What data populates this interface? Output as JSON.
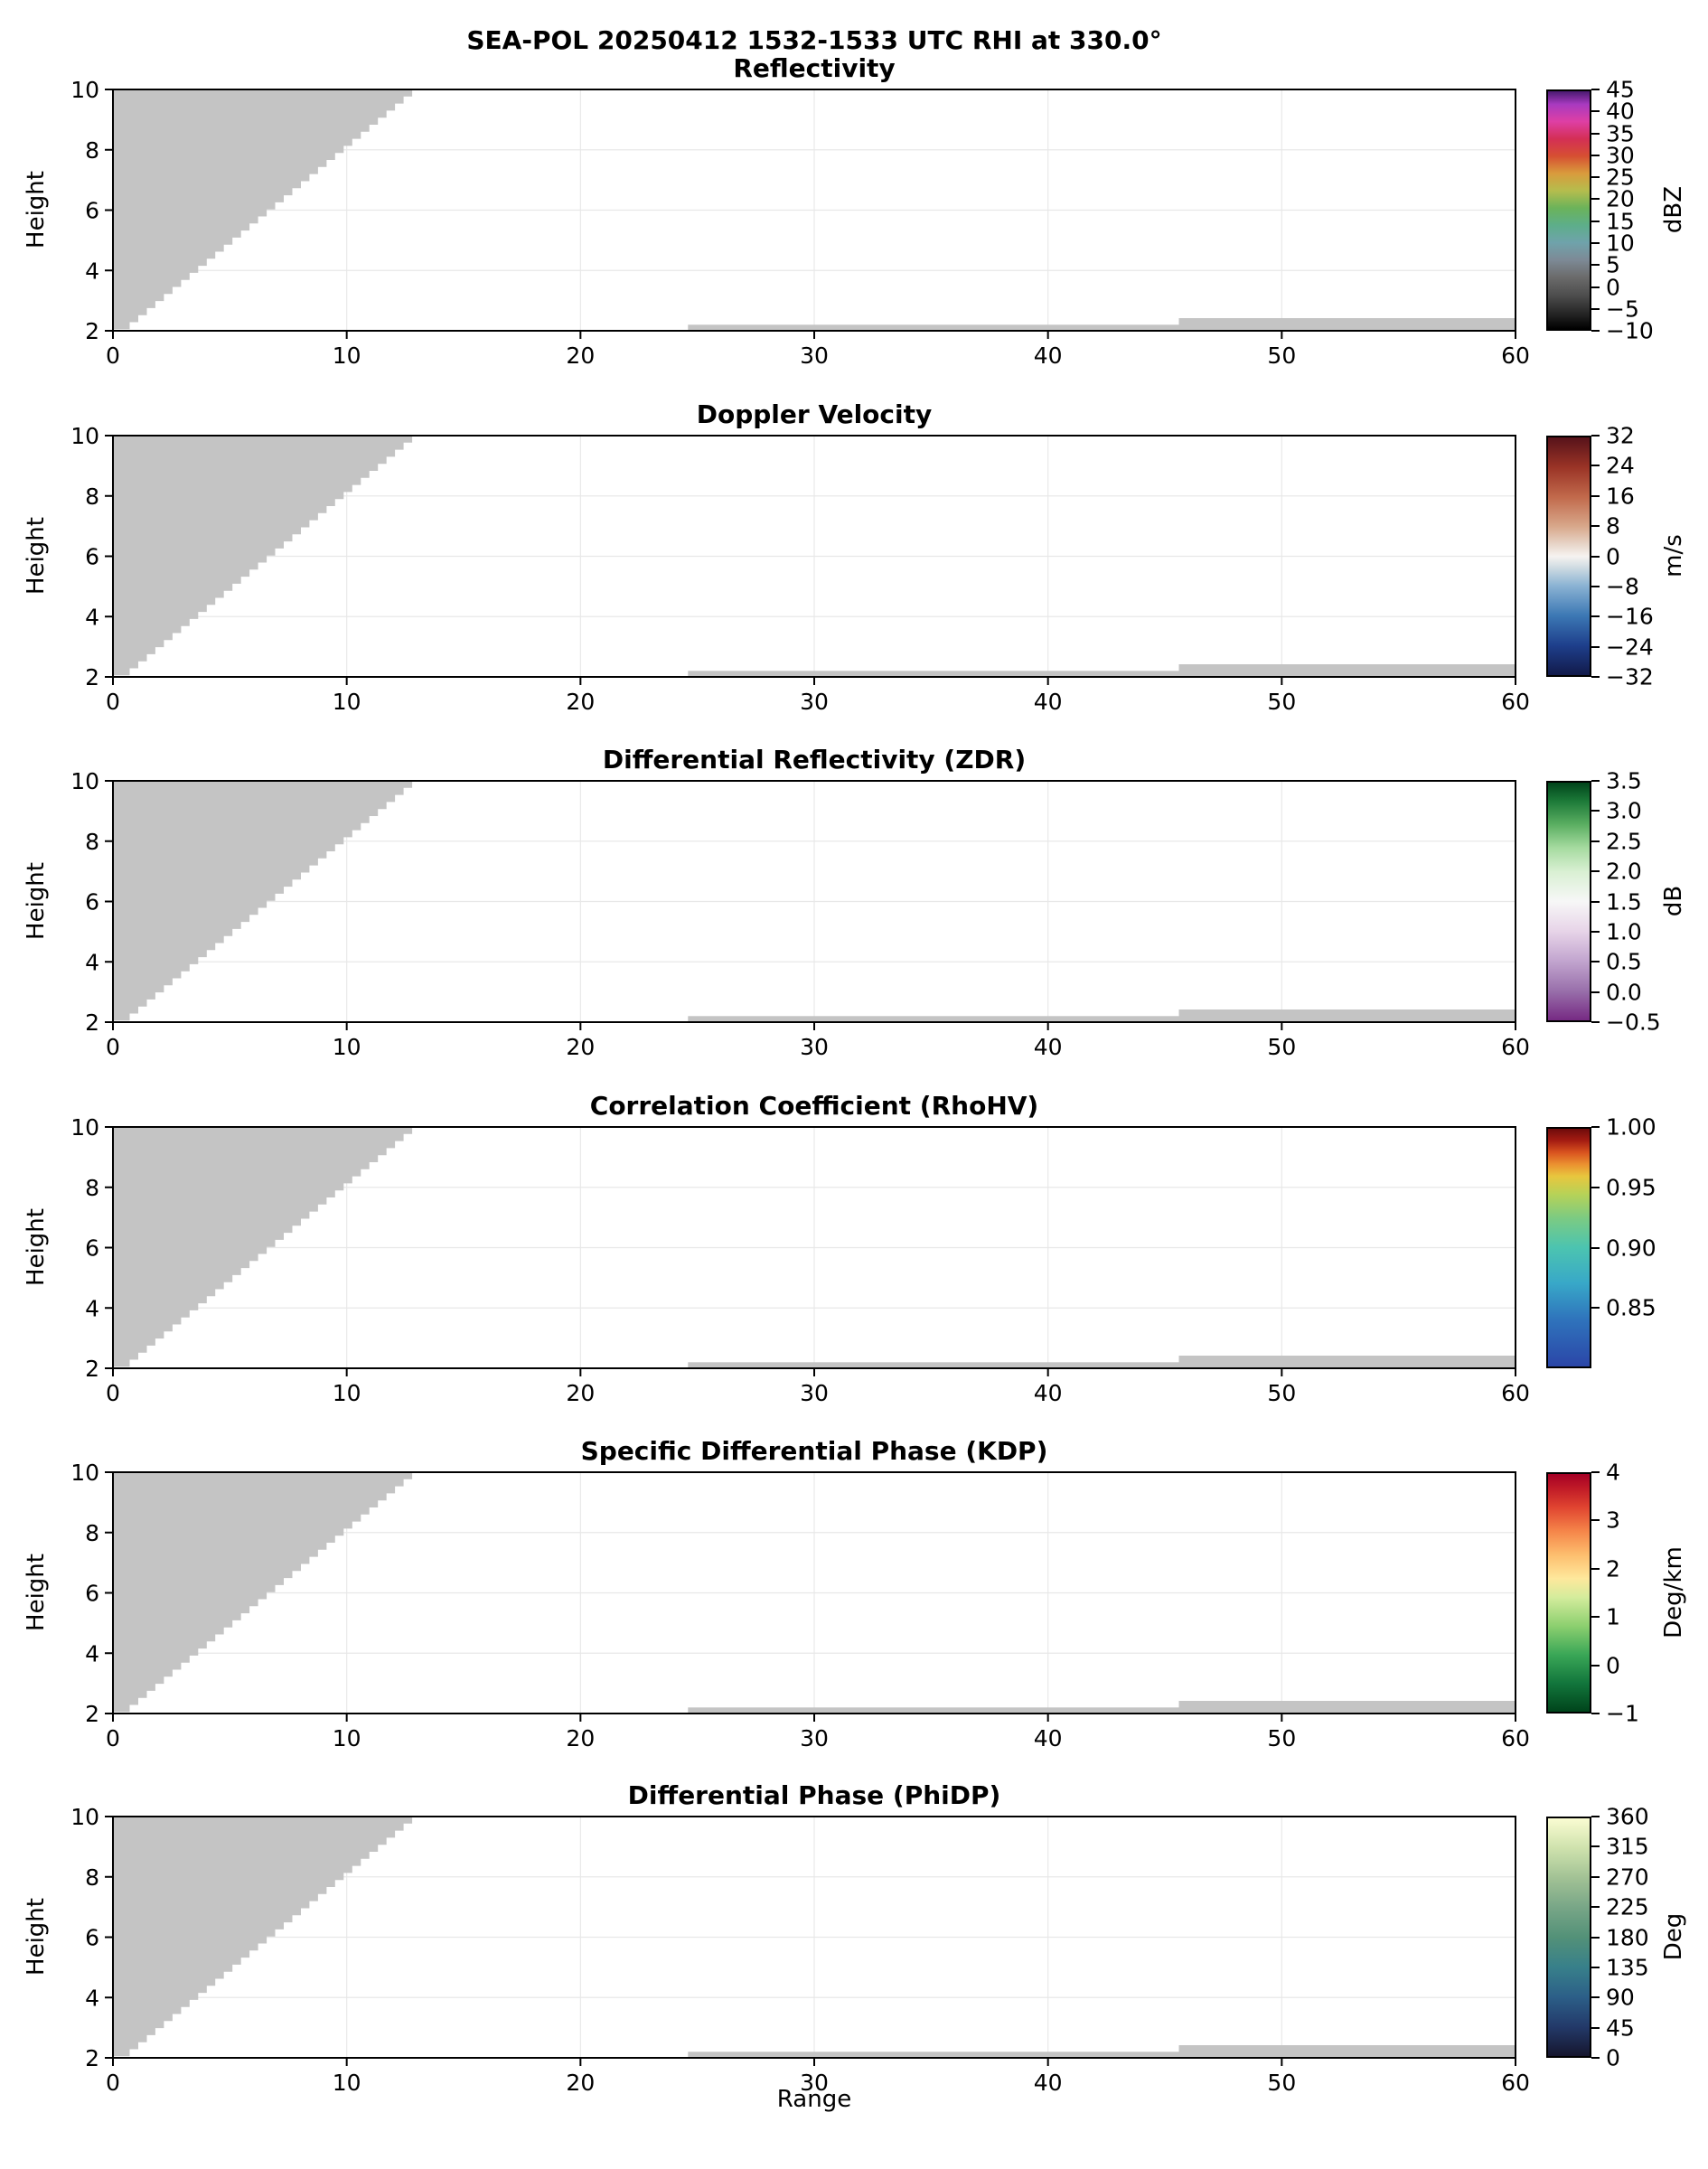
{
  "chart_data": {
    "type": "heatmap",
    "suptitle": "SEA-POL 20250412 1532-1533 UTC RHI at 330.0°",
    "xlabel": "Range",
    "ylabel": "Height",
    "xlim": [
      0,
      60
    ],
    "ylim": [
      2,
      10
    ],
    "x_ticks": [
      0,
      10,
      20,
      30,
      40,
      50,
      60
    ],
    "y_ticks": [
      2,
      4,
      6,
      8,
      10
    ],
    "grid": true,
    "masked_color": "#c4c4c4",
    "masked_regions": {
      "wedge": {
        "from": [
          0.35,
          2.05
        ],
        "to": [
          12.8,
          10
        ],
        "note": "stepped no-data wedge in upper-left of every panel"
      },
      "strips": [
        {
          "x0": 24.6,
          "x1": 45.6,
          "y0": 2.0,
          "y1": 2.2
        },
        {
          "x0": 45.6,
          "x1": 60.0,
          "y0": 2.0,
          "y1": 2.42
        }
      ],
      "note": "no precipitation echoes present; only gray masked/no-data regions are drawn in all six panels"
    },
    "panels": [
      {
        "title": "Reflectivity",
        "colorbar": {
          "unit": "dBZ",
          "vmin": -10,
          "vmax": 45,
          "ticks": [
            {
              "v": 45,
              "label": "45"
            },
            {
              "v": 40,
              "label": "40"
            },
            {
              "v": 35,
              "label": "35"
            },
            {
              "v": 30,
              "label": "30"
            },
            {
              "v": 25,
              "label": "25"
            },
            {
              "v": 20,
              "label": "20"
            },
            {
              "v": 15,
              "label": "15"
            },
            {
              "v": 10,
              "label": "10"
            },
            {
              "v": 5,
              "label": "5"
            },
            {
              "v": 0,
              "label": "0"
            },
            {
              "v": -5,
              "label": "−5"
            },
            {
              "v": -10,
              "label": "−10"
            }
          ],
          "stops": [
            {
              "v": -10,
              "c": "#000000"
            },
            {
              "v": -6,
              "c": "#2a2a2a"
            },
            {
              "v": -2,
              "c": "#4f4f4f"
            },
            {
              "v": 2,
              "c": "#6b6b6b"
            },
            {
              "v": 6,
              "c": "#7d8a96"
            },
            {
              "v": 10,
              "c": "#6fa3ab"
            },
            {
              "v": 14,
              "c": "#5dae8a"
            },
            {
              "v": 18,
              "c": "#6bb35a"
            },
            {
              "v": 22,
              "c": "#b5bd4d"
            },
            {
              "v": 26,
              "c": "#d99b3c"
            },
            {
              "v": 30,
              "c": "#d64f32"
            },
            {
              "v": 34,
              "c": "#d42f55"
            },
            {
              "v": 38,
              "c": "#de3fa5"
            },
            {
              "v": 42,
              "c": "#a83ac0"
            },
            {
              "v": 45,
              "c": "#4a1a70"
            }
          ]
        }
      },
      {
        "title": "Doppler Velocity",
        "colorbar": {
          "unit": "m/s",
          "vmin": -32,
          "vmax": 32,
          "ticks": [
            {
              "v": 32,
              "label": "32"
            },
            {
              "v": 24,
              "label": "24"
            },
            {
              "v": 16,
              "label": "16"
            },
            {
              "v": 8,
              "label": "8"
            },
            {
              "v": 0,
              "label": "0"
            },
            {
              "v": -8,
              "label": "−8"
            },
            {
              "v": -16,
              "label": "−16"
            },
            {
              "v": -24,
              "label": "−24"
            },
            {
              "v": -32,
              "label": "−32"
            }
          ],
          "stops": [
            {
              "v": -32,
              "c": "#121a4a"
            },
            {
              "v": -24,
              "c": "#1e3f8c"
            },
            {
              "v": -16,
              "c": "#3c78b4"
            },
            {
              "v": -8,
              "c": "#8ab2d3"
            },
            {
              "v": -3,
              "c": "#cfdbe2"
            },
            {
              "v": 0,
              "c": "#f6f3f0"
            },
            {
              "v": 3,
              "c": "#e8d7cb"
            },
            {
              "v": 8,
              "c": "#d8a88b"
            },
            {
              "v": 16,
              "c": "#c1694b"
            },
            {
              "v": 24,
              "c": "#9a3326"
            },
            {
              "v": 32,
              "c": "#57121a"
            }
          ]
        }
      },
      {
        "title": "Differential Reflectivity (ZDR)",
        "colorbar": {
          "unit": "dB",
          "vmin": -0.5,
          "vmax": 3.5,
          "ticks": [
            {
              "v": 3.5,
              "label": "3.5"
            },
            {
              "v": 3.0,
              "label": "3.0"
            },
            {
              "v": 2.5,
              "label": "2.5"
            },
            {
              "v": 2.0,
              "label": "2.0"
            },
            {
              "v": 1.5,
              "label": "1.5"
            },
            {
              "v": 1.0,
              "label": "1.0"
            },
            {
              "v": 0.5,
              "label": "0.5"
            },
            {
              "v": 0.0,
              "label": "0.0"
            },
            {
              "v": -0.5,
              "label": "−0.5"
            }
          ],
          "stops": [
            {
              "v": -0.5,
              "c": "#762a83"
            },
            {
              "v": 0.0,
              "c": "#9970ab"
            },
            {
              "v": 0.5,
              "c": "#c2a5cf"
            },
            {
              "v": 1.0,
              "c": "#e7d4e8"
            },
            {
              "v": 1.5,
              "c": "#f7f7f7"
            },
            {
              "v": 2.0,
              "c": "#d9f0d3"
            },
            {
              "v": 2.4,
              "c": "#a6dba0"
            },
            {
              "v": 2.8,
              "c": "#5aae61"
            },
            {
              "v": 3.2,
              "c": "#1b7837"
            },
            {
              "v": 3.5,
              "c": "#00441b"
            }
          ]
        }
      },
      {
        "title": "Correlation Coefficient (RhoHV)",
        "colorbar": {
          "unit": "",
          "vmin": 0.8,
          "vmax": 1.0,
          "ticks": [
            {
              "v": 1.0,
              "label": "1.00"
            },
            {
              "v": 0.95,
              "label": "0.95"
            },
            {
              "v": 0.9,
              "label": "0.90"
            },
            {
              "v": 0.85,
              "label": "0.85"
            }
          ],
          "stops": [
            {
              "v": 0.8,
              "c": "#2b46a8"
            },
            {
              "v": 0.84,
              "c": "#2f74bc"
            },
            {
              "v": 0.87,
              "c": "#38a8c8"
            },
            {
              "v": 0.9,
              "c": "#4cc4b0"
            },
            {
              "v": 0.925,
              "c": "#7ccb82"
            },
            {
              "v": 0.945,
              "c": "#b7d257"
            },
            {
              "v": 0.96,
              "c": "#e8c63e"
            },
            {
              "v": 0.97,
              "c": "#eb9130"
            },
            {
              "v": 0.98,
              "c": "#d9531f"
            },
            {
              "v": 0.99,
              "c": "#a51c12"
            },
            {
              "v": 1.0,
              "c": "#6e0b0b"
            }
          ]
        }
      },
      {
        "title": "Specific Differential Phase (KDP)",
        "colorbar": {
          "unit": "Deg/km",
          "vmin": -1,
          "vmax": 4,
          "ticks": [
            {
              "v": 4,
              "label": "4"
            },
            {
              "v": 3,
              "label": "3"
            },
            {
              "v": 2,
              "label": "2"
            },
            {
              "v": 1,
              "label": "1"
            },
            {
              "v": 0,
              "label": "0"
            },
            {
              "v": -1,
              "label": "−1"
            }
          ],
          "stops": [
            {
              "v": -1.0,
              "c": "#00441b"
            },
            {
              "v": -0.4,
              "c": "#12763c"
            },
            {
              "v": 0.2,
              "c": "#3aa757"
            },
            {
              "v": 0.8,
              "c": "#8ccf6f"
            },
            {
              "v": 1.4,
              "c": "#d3ec9c"
            },
            {
              "v": 1.8,
              "c": "#fee89c"
            },
            {
              "v": 2.3,
              "c": "#fdbe6e"
            },
            {
              "v": 2.8,
              "c": "#f58549"
            },
            {
              "v": 3.3,
              "c": "#e04430"
            },
            {
              "v": 3.7,
              "c": "#c01a27"
            },
            {
              "v": 4.0,
              "c": "#a50026"
            }
          ]
        }
      },
      {
        "title": "Differential Phase (PhiDP)",
        "colorbar": {
          "unit": "Deg",
          "vmin": 0,
          "vmax": 360,
          "ticks": [
            {
              "v": 360,
              "label": "360"
            },
            {
              "v": 315,
              "label": "315"
            },
            {
              "v": 270,
              "label": "270"
            },
            {
              "v": 225,
              "label": "225"
            },
            {
              "v": 180,
              "label": "180"
            },
            {
              "v": 135,
              "label": "135"
            },
            {
              "v": 90,
              "label": "90"
            },
            {
              "v": 45,
              "label": "45"
            },
            {
              "v": 0,
              "label": "0"
            }
          ],
          "stops": [
            {
              "v": 0,
              "c": "#16162e"
            },
            {
              "v": 45,
              "c": "#233a6a"
            },
            {
              "v": 90,
              "c": "#2c5f88"
            },
            {
              "v": 135,
              "c": "#38808a"
            },
            {
              "v": 180,
              "c": "#539178"
            },
            {
              "v": 225,
              "c": "#78a687"
            },
            {
              "v": 270,
              "c": "#a2c295"
            },
            {
              "v": 315,
              "c": "#cfe2ad"
            },
            {
              "v": 360,
              "c": "#fafcd2"
            }
          ]
        }
      }
    ]
  }
}
